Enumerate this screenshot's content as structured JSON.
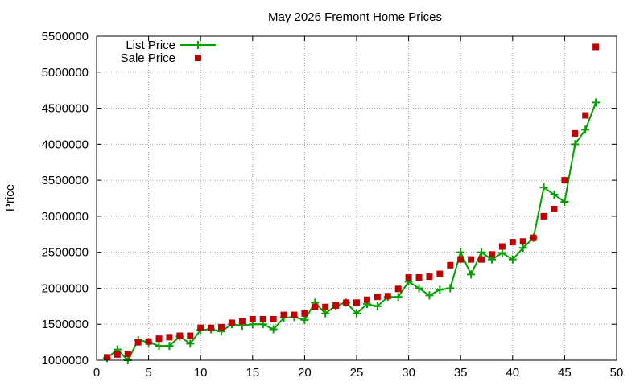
{
  "chart_data": {
    "type": "line",
    "title": "May 2026 Fremont Home Prices",
    "xlabel": "",
    "ylabel": "Price",
    "xlim": [
      0,
      50
    ],
    "ylim": [
      1000000,
      5500000
    ],
    "xticks": [
      0,
      5,
      10,
      15,
      20,
      25,
      30,
      35,
      40,
      45,
      50
    ],
    "yticks": [
      1000000,
      1500000,
      2000000,
      2500000,
      3000000,
      3500000,
      4000000,
      4500000,
      5000000,
      5500000
    ],
    "grid": true,
    "legend_position": "top-left",
    "x": [
      1,
      2,
      3,
      4,
      5,
      6,
      7,
      8,
      9,
      10,
      11,
      12,
      13,
      14,
      15,
      16,
      17,
      18,
      19,
      20,
      21,
      22,
      23,
      24,
      25,
      26,
      27,
      28,
      29,
      30,
      31,
      32,
      33,
      34,
      35,
      36,
      37,
      38,
      39,
      40,
      41,
      42,
      43,
      44,
      45,
      46,
      47,
      48
    ],
    "series": [
      {
        "name": "List Price",
        "style": "line-points",
        "color": "#00a000",
        "values": [
          1030000,
          1150000,
          1000000,
          1280000,
          1250000,
          1200000,
          1200000,
          1330000,
          1230000,
          1420000,
          1430000,
          1400000,
          1500000,
          1480000,
          1500000,
          1500000,
          1430000,
          1590000,
          1600000,
          1560000,
          1800000,
          1650000,
          1760000,
          1800000,
          1650000,
          1780000,
          1750000,
          1880000,
          1880000,
          2090000,
          2000000,
          1900000,
          1980000,
          2000000,
          2500000,
          2190000,
          2500000,
          2400000,
          2490000,
          2400000,
          2560000,
          2700000,
          3400000,
          3300000,
          3200000,
          4000000,
          4200000,
          4580000
        ]
      },
      {
        "name": "Sale Price",
        "style": "points",
        "color": "#c00000",
        "values": [
          1040000,
          1080000,
          1090000,
          1250000,
          1260000,
          1300000,
          1320000,
          1340000,
          1340000,
          1450000,
          1450000,
          1460000,
          1520000,
          1540000,
          1570000,
          1570000,
          1570000,
          1630000,
          1630000,
          1650000,
          1740000,
          1740000,
          1760000,
          1800000,
          1800000,
          1840000,
          1880000,
          1890000,
          1990000,
          2150000,
          2150000,
          2160000,
          2200000,
          2320000,
          2400000,
          2400000,
          2400000,
          2470000,
          2580000,
          2640000,
          2650000,
          2700000,
          3000000,
          3100000,
          3500000,
          4150000,
          4400000,
          5350000
        ]
      }
    ]
  }
}
